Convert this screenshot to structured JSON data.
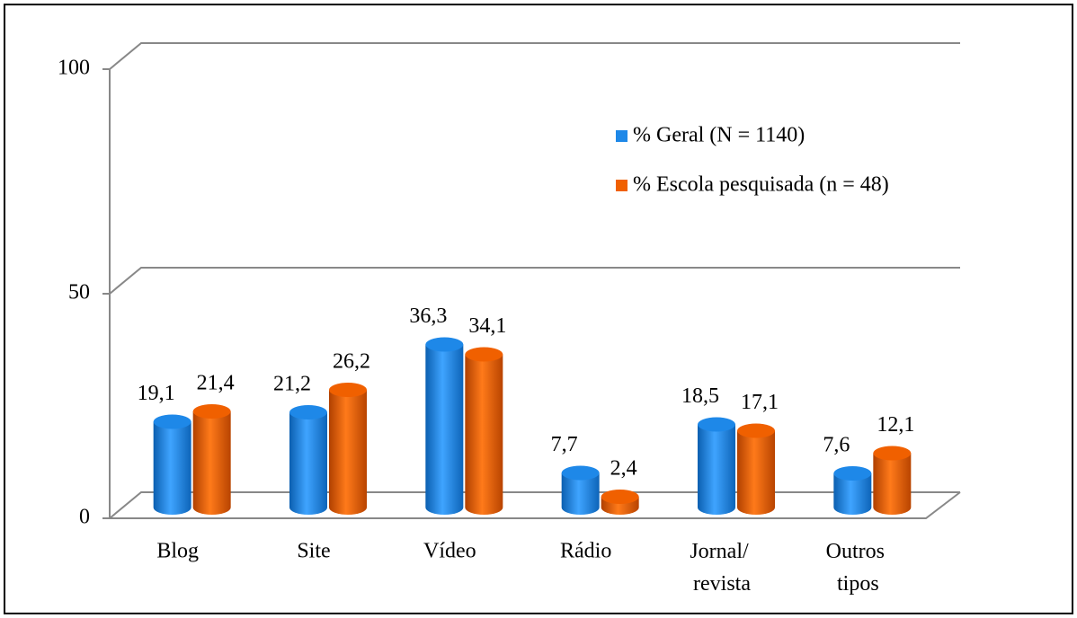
{
  "chart_data": {
    "type": "bar",
    "categories": [
      "Blog",
      "Site",
      "Vídeo",
      "Rádio",
      "Jornal/ revista",
      "Outros tipos"
    ],
    "series": [
      {
        "name": "% Geral (N = 1140)",
        "color": "#1e88e8",
        "values": [
          19.1,
          21.2,
          36.3,
          7.7,
          18.5,
          7.6
        ],
        "value_labels": [
          "19,1",
          "21,2",
          "36,3",
          "7,7",
          "18,5",
          "7,6"
        ]
      },
      {
        "name": "% Escola pesquisada (n = 48)",
        "color": "#f06000",
        "values": [
          21.4,
          26.2,
          34.1,
          2.4,
          17.1,
          12.1
        ],
        "value_labels": [
          "21,4",
          "26,2",
          "34,1",
          "2,4",
          "17,1",
          "12,1"
        ]
      }
    ],
    "ylim": [
      0,
      100
    ],
    "yticks": [
      0,
      50,
      100
    ],
    "grid": true
  }
}
